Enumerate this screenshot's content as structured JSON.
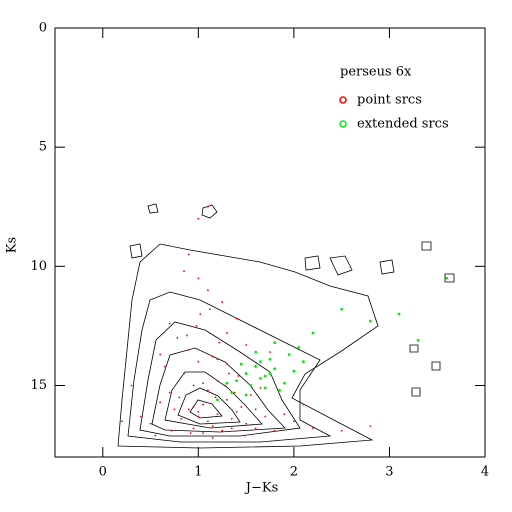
{
  "chart_data": {
    "type": "scatter",
    "xlabel": "J−Ks",
    "ylabel": "Ks",
    "legend_title": "perseus 6x",
    "legend": "upper right",
    "xlim": [
      -0.5,
      4
    ],
    "ylim": [
      0,
      18
    ],
    "y_inverted": true,
    "xticks": [
      0,
      1,
      2,
      3,
      4
    ],
    "yticks": [
      0,
      5,
      10,
      15
    ],
    "series": [
      {
        "name": "point srcs",
        "color": "#ff0000",
        "x": [
          0.8,
          0.9,
          1.0,
          1.1,
          1.2,
          0.95,
          1.05,
          1.15,
          1.25,
          0.85,
          0.75,
          1.3,
          1.4,
          1.0,
          0.9,
          1.1,
          1.2,
          1.35,
          0.7,
          1.5,
          1.6,
          1.45,
          0.65,
          0.6,
          1.7,
          1.8,
          2.0,
          0.5,
          1.05,
          0.95,
          1.15,
          0.88,
          1.22,
          1.32,
          1.02,
          0.78,
          1.12,
          0.98,
          1.28,
          1.42,
          0.72,
          1.55,
          1.65,
          1.9,
          2.2,
          0.55,
          0.4,
          2.5,
          1.0,
          1.1,
          0.9,
          1.3,
          1.2,
          0.82,
          1.08,
          1.18,
          1.38,
          0.92,
          1.48,
          1.6,
          2.1,
          0.3,
          1.0,
          0.85,
          1.25,
          1.75,
          0.6,
          1.35,
          1.15,
          1.05,
          0.2,
          2.8,
          1.4,
          0.95,
          1.1,
          1.6,
          0.7,
          1.5,
          1.3,
          1.0
        ],
        "values": [
          15.5,
          16.0,
          16.3,
          16.5,
          16.2,
          15.0,
          15.8,
          16.7,
          16.9,
          14.5,
          16.0,
          15.6,
          16.1,
          14.0,
          13.5,
          15.2,
          14.8,
          16.4,
          15.3,
          16.6,
          16.8,
          15.9,
          14.2,
          15.7,
          16.3,
          16.9,
          16.5,
          16.6,
          17.0,
          16.8,
          13.8,
          12.9,
          13.2,
          14.5,
          12.0,
          13.0,
          11.8,
          12.5,
          15.0,
          14.6,
          16.9,
          15.4,
          15.1,
          16.2,
          16.8,
          17.1,
          16.3,
          16.9,
          10.5,
          11.0,
          9.5,
          12.8,
          13.9,
          16.4,
          16.6,
          15.5,
          15.3,
          17.0,
          17.1,
          14.2,
          15.8,
          15.0,
          8.0,
          10.2,
          11.5,
          13.6,
          13.7,
          16.8,
          17.2,
          14.9,
          16.5,
          16.7,
          12.2,
          15.9,
          7.5,
          16.0,
          12.4,
          13.3,
          14.1,
          16.1
        ]
      },
      {
        "name": "extended srcs",
        "color": "#00ee00",
        "x": [
          1.4,
          1.5,
          1.6,
          1.7,
          1.8,
          1.9,
          2.0,
          1.55,
          1.65,
          1.75,
          1.85,
          1.45,
          1.35,
          1.6,
          1.7,
          2.1,
          1.8,
          1.5,
          1.95,
          1.3,
          2.2,
          2.5,
          2.8,
          3.1,
          3.6,
          3.3,
          1.2,
          1.65,
          1.75,
          2.05
        ],
        "values": [
          14.8,
          14.5,
          14.2,
          14.6,
          14.3,
          14.9,
          14.4,
          15.0,
          14.7,
          13.9,
          15.2,
          14.1,
          15.3,
          13.6,
          15.1,
          14.0,
          13.2,
          15.4,
          13.7,
          14.9,
          12.8,
          11.8,
          12.3,
          12.0,
          10.5,
          13.1,
          15.6,
          14.0,
          14.5,
          13.4
        ]
      }
    ]
  }
}
